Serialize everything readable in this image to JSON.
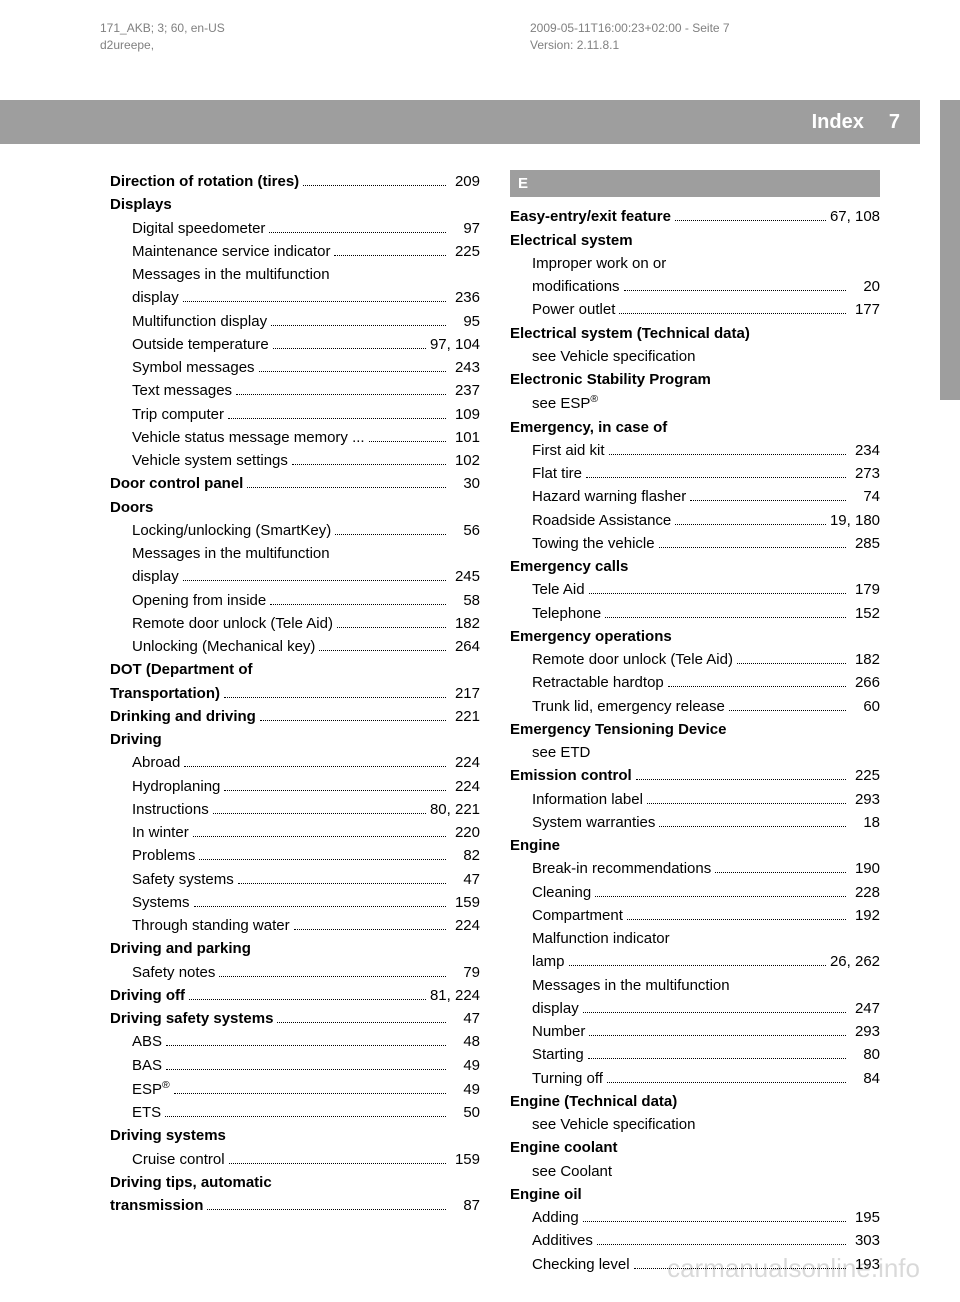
{
  "meta": {
    "left_line1": "171_AKB; 3; 60, en-US",
    "left_line2": "d2ureepe,",
    "right_line1": "2009-05-11T16:00:23+02:00 - Seite 7",
    "right_line2": "Version: 2.11.8.1"
  },
  "header": {
    "title": "Index",
    "page": "7"
  },
  "watermark": "carmanualsonline.info",
  "left_col": [
    {
      "label": "Direction of rotation (tires)",
      "page": "209",
      "bold": true
    },
    {
      "label": "Displays",
      "bold": true,
      "nopages": true
    },
    {
      "label": "Digital speedometer",
      "page": "97",
      "sub": true
    },
    {
      "label": "Maintenance service indicator",
      "page": "225",
      "sub": true
    },
    {
      "label": "Messages in the multifunction",
      "sub": true,
      "nopages": true,
      "nodots": true
    },
    {
      "label": "display",
      "page": "236",
      "sub": true
    },
    {
      "label": "Multifunction display",
      "page": "95",
      "sub": true
    },
    {
      "label": "Outside temperature",
      "page": "97, 104",
      "sub": true
    },
    {
      "label": "Symbol messages",
      "page": "243",
      "sub": true
    },
    {
      "label": "Text messages",
      "page": "237",
      "sub": true
    },
    {
      "label": "Trip computer",
      "page": "109",
      "sub": true
    },
    {
      "label": "Vehicle status message memory",
      "page": "101",
      "sub": true,
      "ellip": true
    },
    {
      "label": "Vehicle system settings",
      "page": "102",
      "sub": true
    },
    {
      "label": "Door control panel",
      "page": "30",
      "bold": true
    },
    {
      "label": "Doors",
      "bold": true,
      "nopages": true
    },
    {
      "label": "Locking/unlocking (SmartKey)",
      "page": "56",
      "sub": true
    },
    {
      "label": "Messages in the multifunction",
      "sub": true,
      "nopages": true,
      "nodots": true
    },
    {
      "label": "display",
      "page": "245",
      "sub": true
    },
    {
      "label": "Opening from inside",
      "page": "58",
      "sub": true
    },
    {
      "label": "Remote door unlock (Tele Aid)",
      "page": "182",
      "sub": true
    },
    {
      "label": "Unlocking (Mechanical key)",
      "page": "264",
      "sub": true
    },
    {
      "label": "DOT (Department of",
      "bold": true,
      "nopages": true,
      "nodots": true
    },
    {
      "label": "Transportation)",
      "page": "217",
      "bold": true
    },
    {
      "label": "Drinking and driving",
      "page": "221",
      "bold": true
    },
    {
      "label": "Driving",
      "bold": true,
      "nopages": true
    },
    {
      "label": "Abroad",
      "page": "224",
      "sub": true
    },
    {
      "label": "Hydroplaning",
      "page": "224",
      "sub": true
    },
    {
      "label": "Instructions",
      "page": "80, 221",
      "sub": true
    },
    {
      "label": "In winter",
      "page": "220",
      "sub": true
    },
    {
      "label": "Problems",
      "page": "82",
      "sub": true
    },
    {
      "label": "Safety systems",
      "page": "47",
      "sub": true
    },
    {
      "label": "Systems",
      "page": "159",
      "sub": true
    },
    {
      "label": "Through standing water",
      "page": "224",
      "sub": true
    },
    {
      "label": "Driving and parking",
      "bold": true,
      "nopages": true
    },
    {
      "label": "Safety notes",
      "page": "79",
      "sub": true
    },
    {
      "label": "Driving off",
      "page": "81, 224",
      "bold": true
    },
    {
      "label": "Driving safety systems",
      "page": "47",
      "bold": true
    },
    {
      "label": "ABS",
      "page": "48",
      "sub": true
    },
    {
      "label": "BAS",
      "page": "49",
      "sub": true
    },
    {
      "label": "ESP®",
      "page": "49",
      "sub": true,
      "sup": true
    },
    {
      "label": "ETS",
      "page": "50",
      "sub": true
    },
    {
      "label": "Driving systems",
      "bold": true,
      "nopages": true
    },
    {
      "label": "Cruise control",
      "page": "159",
      "sub": true
    },
    {
      "label": "Driving tips, automatic",
      "bold": true,
      "nopages": true,
      "nodots": true
    },
    {
      "label": "transmission",
      "page": "87",
      "bold": true
    }
  ],
  "section_e": "E",
  "right_col": [
    {
      "label": "Easy-entry/exit feature",
      "page": "67, 108",
      "bold": true
    },
    {
      "label": "Electrical system",
      "bold": true,
      "nopages": true
    },
    {
      "label": "Improper work on or",
      "sub": true,
      "nopages": true,
      "nodots": true
    },
    {
      "label": "modifications",
      "page": "20",
      "sub": true
    },
    {
      "label": "Power outlet",
      "page": "177",
      "sub": true
    },
    {
      "label": "Electrical system (Technical data)",
      "bold": true,
      "nopages": true,
      "nodots": true
    },
    {
      "label": "see Vehicle specification",
      "sub": true,
      "nopages": true,
      "nodots": true
    },
    {
      "label": "Electronic Stability Program",
      "bold": true,
      "nopages": true,
      "nodots": true
    },
    {
      "label": "see ESP®",
      "sub": true,
      "nopages": true,
      "nodots": true,
      "sup": true
    },
    {
      "label": "Emergency, in case of",
      "bold": true,
      "nopages": true
    },
    {
      "label": "First aid kit",
      "page": "234",
      "sub": true
    },
    {
      "label": "Flat tire",
      "page": "273",
      "sub": true
    },
    {
      "label": "Hazard warning flasher",
      "page": "74",
      "sub": true
    },
    {
      "label": "Roadside Assistance",
      "page": "19, 180",
      "sub": true
    },
    {
      "label": "Towing the vehicle",
      "page": "285",
      "sub": true
    },
    {
      "label": "Emergency calls",
      "bold": true,
      "nopages": true
    },
    {
      "label": "Tele Aid",
      "page": "179",
      "sub": true
    },
    {
      "label": "Telephone",
      "page": "152",
      "sub": true
    },
    {
      "label": "Emergency operations",
      "bold": true,
      "nopages": true
    },
    {
      "label": "Remote door unlock (Tele Aid)",
      "page": "182",
      "sub": true
    },
    {
      "label": "Retractable hardtop",
      "page": "266",
      "sub": true
    },
    {
      "label": "Trunk lid, emergency release",
      "page": "60",
      "sub": true
    },
    {
      "label": "Emergency Tensioning Device",
      "bold": true,
      "nopages": true,
      "nodots": true
    },
    {
      "label": "see ETD",
      "sub": true,
      "nopages": true,
      "nodots": true
    },
    {
      "label": "Emission control",
      "page": "225",
      "bold": true
    },
    {
      "label": "Information label",
      "page": "293",
      "sub": true
    },
    {
      "label": "System warranties",
      "page": "18",
      "sub": true
    },
    {
      "label": "Engine",
      "bold": true,
      "nopages": true
    },
    {
      "label": "Break-in recommendations",
      "page": "190",
      "sub": true
    },
    {
      "label": "Cleaning",
      "page": "228",
      "sub": true
    },
    {
      "label": "Compartment",
      "page": "192",
      "sub": true
    },
    {
      "label": "Malfunction indicator",
      "sub": true,
      "nopages": true,
      "nodots": true
    },
    {
      "label": "lamp",
      "page": "26, 262",
      "sub": true
    },
    {
      "label": "Messages in the multifunction",
      "sub": true,
      "nopages": true,
      "nodots": true
    },
    {
      "label": "display",
      "page": "247",
      "sub": true
    },
    {
      "label": "Number",
      "page": "293",
      "sub": true
    },
    {
      "label": "Starting",
      "page": "80",
      "sub": true
    },
    {
      "label": "Turning off",
      "page": "84",
      "sub": true
    },
    {
      "label": "Engine (Technical data)",
      "bold": true,
      "nopages": true,
      "nodots": true
    },
    {
      "label": "see Vehicle specification",
      "sub": true,
      "nopages": true,
      "nodots": true
    },
    {
      "label": "Engine coolant",
      "bold": true,
      "nopages": true,
      "nodots": true
    },
    {
      "label": "see Coolant",
      "sub": true,
      "nopages": true,
      "nodots": true
    },
    {
      "label": "Engine oil",
      "bold": true,
      "nopages": true
    },
    {
      "label": "Adding",
      "page": "195",
      "sub": true
    },
    {
      "label": "Additives",
      "page": "303",
      "sub": true
    },
    {
      "label": "Checking level",
      "page": "193",
      "sub": true
    }
  ]
}
